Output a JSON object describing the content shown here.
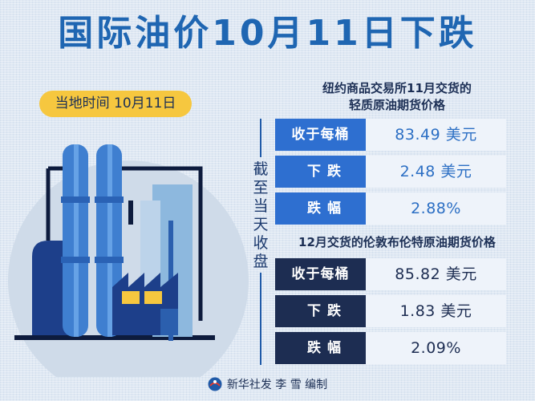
{
  "title": "国际油价10月11日下跌",
  "date_badge": "当地时间  10月11日",
  "side_caption": "截至当天收盘",
  "section1": {
    "title_line1": "纽约商品交易所11月交货的",
    "title_line2": "轻质原油期货价格",
    "rows": [
      {
        "label": "收于每桶",
        "value": "83.49 美元"
      },
      {
        "label": "下  跌",
        "value": "2.48 美元"
      },
      {
        "label": "跌  幅",
        "value": "2.88%"
      }
    ]
  },
  "section2": {
    "title": "12月交货的伦敦布伦特原油期货价格",
    "rows": [
      {
        "label": "收于每桶",
        "value": "85.82 美元"
      },
      {
        "label": "下  跌",
        "value": "1.83 美元"
      },
      {
        "label": "跌  幅",
        "value": "2.09%"
      }
    ]
  },
  "footer": "新华社发 李 雪 编制",
  "colors": {
    "title_blue": "#1f66b2",
    "badge_yellow": "#f6c73f",
    "section1_label": "#2e6fd0",
    "section2_label": "#1d2d52"
  },
  "icons": [
    "refinery-illustration",
    "xinhua-logo-icon"
  ]
}
